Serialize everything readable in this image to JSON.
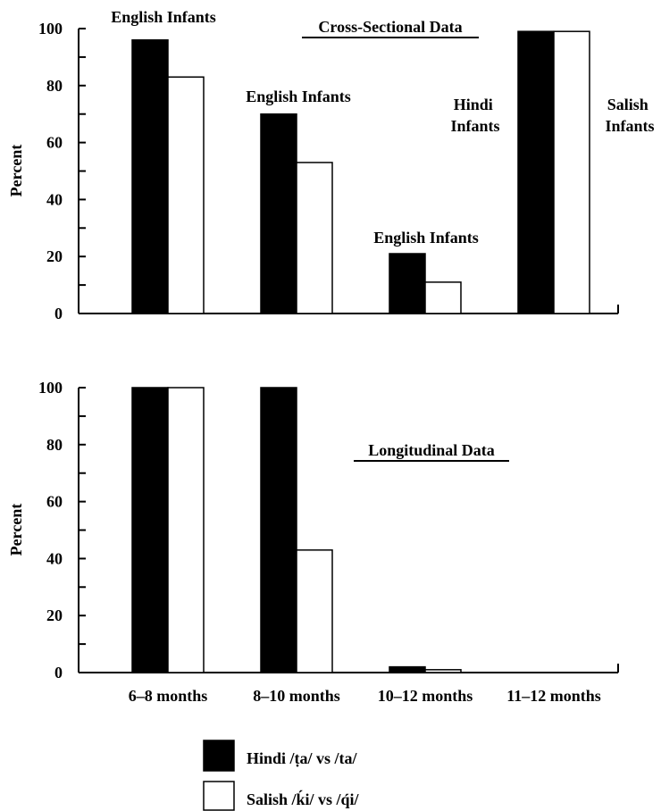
{
  "legend": {
    "series": [
      {
        "name": "Hindi /ṭa/ vs /ta/",
        "color": "#000000"
      },
      {
        "name": "Salish /ḱi/ vs /q́i/",
        "color": "#ffffff"
      }
    ]
  },
  "chart_data": [
    {
      "type": "bar",
      "title": "Cross-Sectional Data",
      "ylabel": "Percent",
      "ylim": [
        0,
        100
      ],
      "yticks": [
        "0",
        "20",
        "40",
        "60",
        "80",
        "100"
      ],
      "categories": [
        "6–8 months",
        "8–10 months",
        "10–12 months",
        "11–12 months"
      ],
      "series": [
        {
          "name": "Hindi /ṭa/ vs /ta/",
          "values": [
            96,
            70,
            21,
            99
          ]
        },
        {
          "name": "Salish /ḱi/ vs /q́i/",
          "values": [
            83,
            53,
            11,
            99
          ]
        }
      ],
      "annotations": [
        "English Infants",
        "English Infants",
        "English Infants",
        "Hindi Infants",
        "Salish Infants"
      ],
      "grid": false
    },
    {
      "type": "bar",
      "title": "Longitudinal Data",
      "ylabel": "Percent",
      "ylim": [
        0,
        100
      ],
      "yticks": [
        "0",
        "20",
        "40",
        "60",
        "80",
        "100"
      ],
      "categories": [
        "6–8 months",
        "8–10 months",
        "10–12 months",
        "11–12 months"
      ],
      "series": [
        {
          "name": "Hindi /ṭa/ vs /ta/",
          "values": [
            100,
            100,
            2,
            0
          ]
        },
        {
          "name": "Salish /ḱi/ vs /q́i/",
          "values": [
            100,
            43,
            1,
            0
          ]
        }
      ],
      "grid": false
    }
  ]
}
